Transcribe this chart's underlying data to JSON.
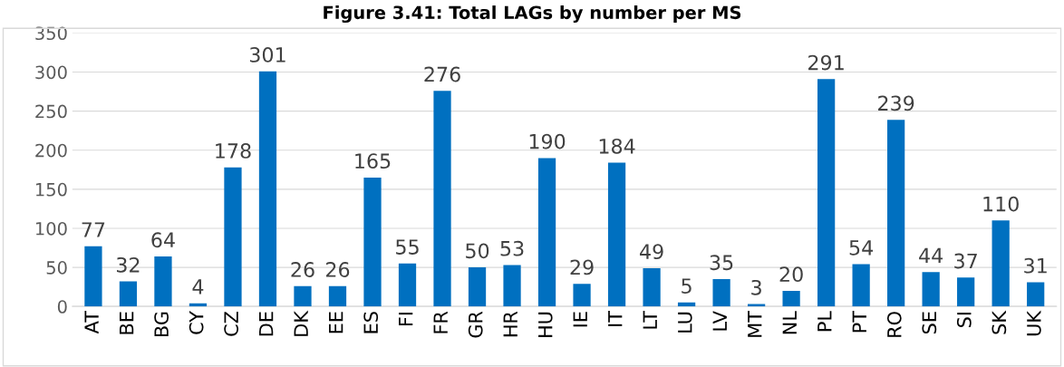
{
  "chart_data": {
    "type": "bar",
    "title": "Figure 3.41: Total LAGs by number per MS",
    "categories": [
      "AT",
      "BE",
      "BG",
      "CY",
      "CZ",
      "DE",
      "DK",
      "EE",
      "ES",
      "FI",
      "FR",
      "GR",
      "HR",
      "HU",
      "IE",
      "IT",
      "LT",
      "LU",
      "LV",
      "MT",
      "NL",
      "PL",
      "PT",
      "RO",
      "SE",
      "SI",
      "SK",
      "UK"
    ],
    "values": [
      77,
      32,
      64,
      4,
      178,
      301,
      26,
      26,
      165,
      55,
      276,
      50,
      53,
      190,
      29,
      184,
      49,
      5,
      35,
      3,
      20,
      291,
      54,
      239,
      44,
      37,
      110,
      31
    ],
    "color": "#0070c0",
    "ylim": [
      0,
      350
    ],
    "yticks": [
      0,
      50,
      100,
      150,
      200,
      250,
      300,
      350
    ],
    "grid": "y",
    "data_labels": true
  }
}
